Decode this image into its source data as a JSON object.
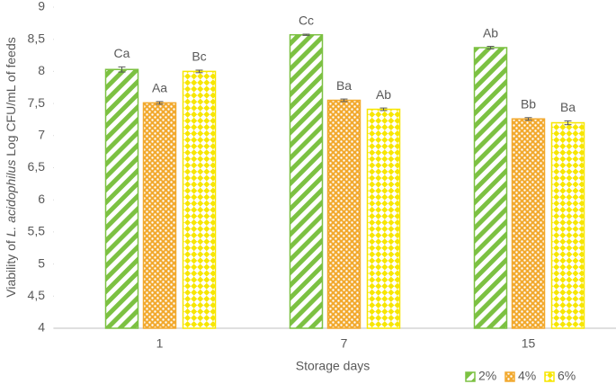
{
  "chart_data": {
    "type": "bar",
    "ylabel_parts": [
      "Viability of ",
      "L. acidophilus",
      " Log CFU/mL of feeds"
    ],
    "xlabel": "Storage days",
    "categories": [
      "1",
      "7",
      "15"
    ],
    "series": [
      {
        "name": "2%",
        "color": "#7cc142",
        "pattern": "stripes",
        "values": [
          8.03,
          8.57,
          8.37
        ],
        "errors": [
          0.04,
          0.01,
          0.02
        ],
        "labels": [
          "Ca",
          "Cc",
          "Ab"
        ]
      },
      {
        "name": "4%",
        "color": "#f2a92e",
        "pattern": "dots",
        "values": [
          7.51,
          7.55,
          7.26
        ],
        "errors": [
          0.02,
          0.02,
          0.02
        ],
        "labels": [
          "Aa",
          "Ba",
          "Bb"
        ]
      },
      {
        "name": "6%",
        "color": "#f7e600",
        "pattern": "checker",
        "values": [
          8.0,
          7.41,
          7.2
        ],
        "errors": [
          0.02,
          0.02,
          0.03
        ],
        "labels": [
          "Bc",
          "Ab",
          "Ba"
        ]
      }
    ],
    "ylim": [
      4,
      9
    ],
    "yticks": [
      4,
      {
        "value": 4.5,
        "label": "4,5"
      },
      5,
      {
        "value": 5.5,
        "label": "5,5"
      },
      6,
      {
        "value": 6.5,
        "label": "6,5"
      },
      7,
      {
        "value": 7.5,
        "label": "7,5"
      },
      8,
      {
        "value": 8.5,
        "label": "8,5"
      },
      9
    ],
    "grid": false,
    "legend": "bottom-right"
  }
}
